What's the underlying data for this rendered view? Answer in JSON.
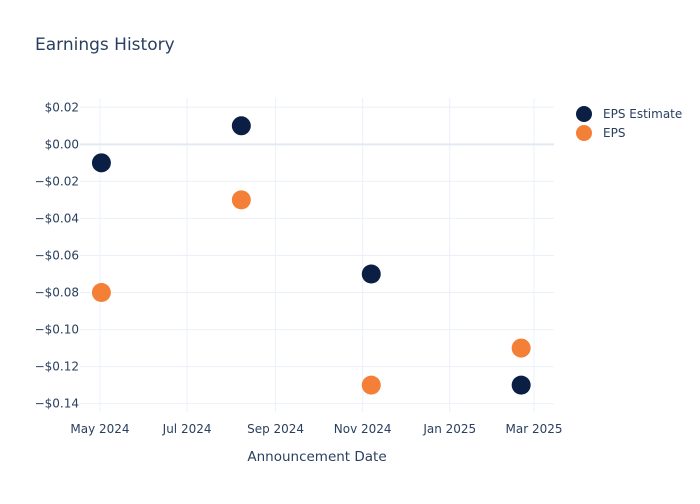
{
  "chart_data": {
    "type": "scatter",
    "title": "Earnings History",
    "xlabel": "Announcement Date",
    "ylabel": "",
    "x_ticks": [
      "May 2024",
      "Jul 2024",
      "Sep 2024",
      "Nov 2024",
      "Jan 2025",
      "Mar 2025"
    ],
    "x_tick_dates": [
      "2024-05-01",
      "2024-07-01",
      "2024-09-01",
      "2024-11-01",
      "2025-01-01",
      "2025-03-01"
    ],
    "xlim": [
      "2024-04-17",
      "2025-03-15"
    ],
    "y_ticks": [
      0.02,
      0,
      -0.02,
      -0.04,
      -0.06,
      -0.08,
      -0.1,
      -0.12,
      -0.14
    ],
    "y_tick_labels": [
      "$0.02",
      "$0.00",
      "−$0.02",
      "−$0.04",
      "−$0.06",
      "−$0.08",
      "−$0.10",
      "−$0.12",
      "−$0.14"
    ],
    "ylim": [
      -0.1445,
      0.025
    ],
    "grid": true,
    "legend_position": "top-right",
    "series": [
      {
        "name": "EPS Estimate",
        "color": "#0b1f45",
        "points": [
          {
            "x": "2024-05-02",
            "y": -0.01
          },
          {
            "x": "2024-08-08",
            "y": 0.01
          },
          {
            "x": "2024-11-07",
            "y": -0.07
          },
          {
            "x": "2025-02-20",
            "y": -0.13
          }
        ]
      },
      {
        "name": "EPS",
        "color": "#f47f36",
        "points": [
          {
            "x": "2024-05-02",
            "y": -0.08
          },
          {
            "x": "2024-08-08",
            "y": -0.03
          },
          {
            "x": "2024-11-07",
            "y": -0.13
          },
          {
            "x": "2025-02-20",
            "y": -0.11
          }
        ]
      }
    ]
  }
}
